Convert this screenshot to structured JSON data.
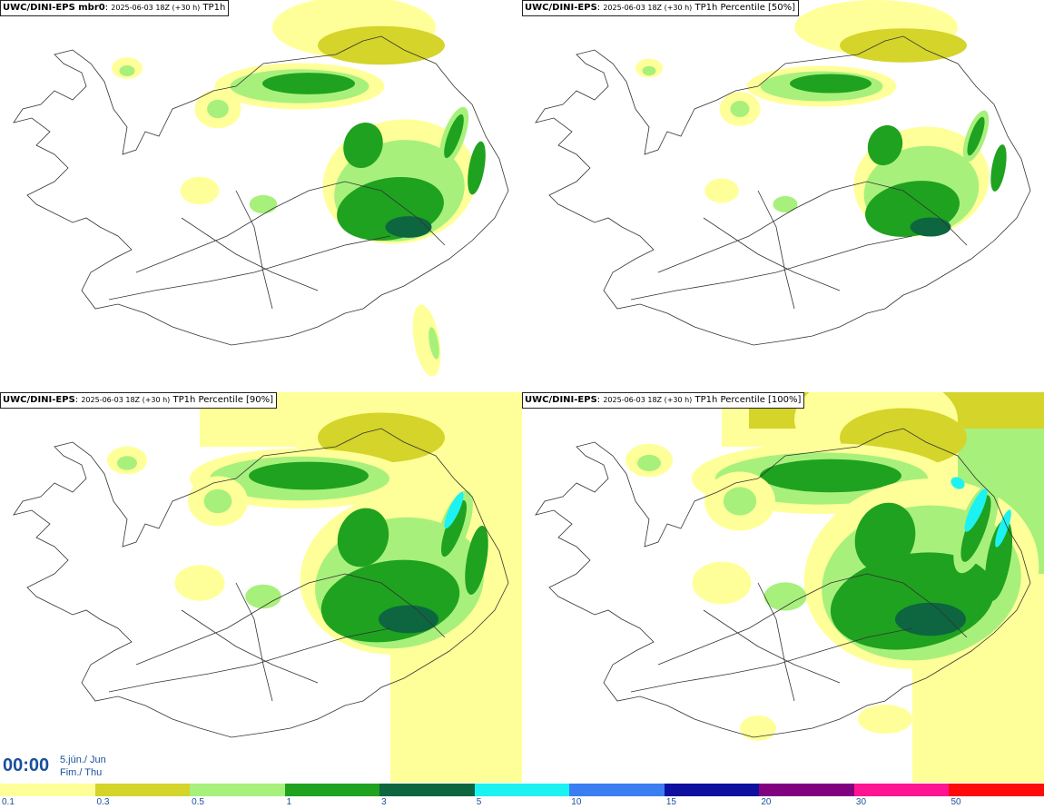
{
  "panels": [
    {
      "model": "UWC/DINI-EPS mbr0",
      "meta": "2025-06-03 18Z (+30 h)",
      "field": "TP1h"
    },
    {
      "model": "UWC/DINI-EPS",
      "meta": "2025-06-03 18Z (+30 h)",
      "field": "TP1h Percentile [50%]"
    },
    {
      "model": "UWC/DINI-EPS",
      "meta": "2025-06-03 18Z (+30 h)",
      "field": "TP1h Percentile [90%]"
    },
    {
      "model": "UWC/DINI-EPS",
      "meta": "2025-06-03 18Z (+30 h)",
      "field": "TP1h Percentile [100%]"
    }
  ],
  "valid_time": {
    "time": "00:00",
    "date_line1": "5.jún./ Jun",
    "date_line2": "Fim./ Thu"
  },
  "legend": {
    "thresholds": [
      "0.1",
      "0.3",
      "0.5",
      "1",
      "3",
      "5",
      "10",
      "15",
      "20",
      "30",
      "50"
    ],
    "colors": [
      "#ffff99",
      "#d4d42a",
      "#a8f07c",
      "#1fa21f",
      "#0d6640",
      "#1cf2f2",
      "#3a7ef2",
      "#1010a0",
      "#800080",
      "#ff1493",
      "#ff0a0a"
    ]
  },
  "palette": {
    "low": "#ffff99",
    "light": "#d4d42a",
    "mid": "#a8f07c",
    "green": "#1fa21f",
    "dark": "#0d6640",
    "cyan": "#1cf2f2",
    "coast": "#333333"
  }
}
